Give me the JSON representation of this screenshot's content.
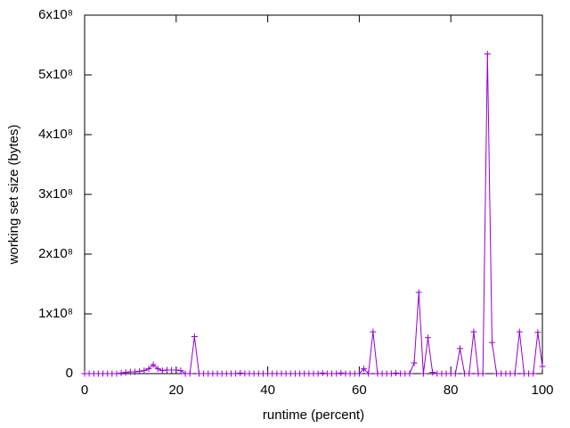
{
  "chart_data": {
    "type": "line",
    "xlabel": "runtime (percent)",
    "ylabel": "working set size (bytes)",
    "x": [
      0,
      1,
      2,
      3,
      4,
      5,
      6,
      7,
      8,
      9,
      10,
      11,
      12,
      13,
      14,
      15,
      16,
      17,
      18,
      19,
      20,
      21,
      22,
      23,
      24,
      25,
      26,
      27,
      28,
      29,
      30,
      31,
      32,
      33,
      34,
      35,
      36,
      37,
      38,
      39,
      40,
      41,
      42,
      43,
      44,
      45,
      46,
      47,
      48,
      49,
      50,
      51,
      52,
      53,
      54,
      55,
      56,
      57,
      58,
      59,
      60,
      61,
      62,
      63,
      64,
      65,
      66,
      67,
      68,
      69,
      70,
      71,
      72,
      73,
      74,
      75,
      76,
      77,
      78,
      79,
      80,
      81,
      82,
      83,
      84,
      85,
      86,
      87,
      88,
      89,
      90,
      91,
      92,
      93,
      94,
      95,
      96,
      97,
      98,
      99,
      100
    ],
    "series": [
      {
        "color": "#9400d3",
        "marker": "+",
        "values": [
          0,
          0,
          0,
          0,
          0,
          0,
          0,
          0,
          1000000,
          2000000,
          3000000,
          3000000,
          4000000,
          5000000,
          8000000,
          15000000,
          8000000,
          5000000,
          6000000,
          6000000,
          6000000,
          5000000,
          0,
          0,
          62000000,
          0,
          0,
          0,
          0,
          0,
          0,
          0,
          0,
          0,
          1000000,
          0,
          0,
          0,
          0,
          0,
          0,
          0,
          0,
          0,
          0,
          0,
          0,
          0,
          0,
          0,
          0,
          0,
          1000000,
          0,
          0,
          0,
          1000000,
          0,
          0,
          0,
          0,
          8000000,
          0,
          70000000,
          0,
          0,
          0,
          0,
          1000000,
          0,
          0,
          0,
          18000000,
          136000000,
          0,
          60000000,
          2000000,
          0,
          0,
          0,
          0,
          0,
          42000000,
          0,
          0,
          70000000,
          0,
          0,
          535000000,
          52000000,
          0,
          0,
          0,
          0,
          0,
          70000000,
          0,
          0,
          0,
          69000000,
          12000000
        ]
      }
    ],
    "xlim": [
      0,
      100
    ],
    "xticks": [
      0,
      20,
      40,
      60,
      80,
      100
    ],
    "ylim": [
      0,
      600000000
    ],
    "yticks": [
      0,
      {
        "value": 100000000,
        "label": "1x10⁸"
      },
      {
        "value": 200000000,
        "label": "2x10⁸"
      },
      {
        "value": 300000000,
        "label": "3x10⁸"
      },
      {
        "value": 400000000,
        "label": "4x10⁸"
      },
      {
        "value": 500000000,
        "label": "5x10⁸"
      },
      {
        "value": 600000000,
        "label": "6x10⁸"
      }
    ],
    "grid": false
  }
}
